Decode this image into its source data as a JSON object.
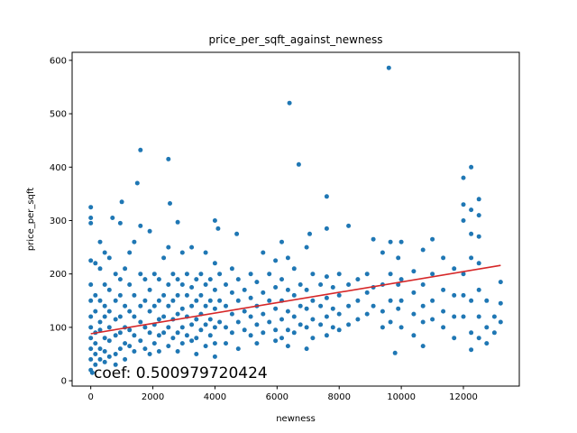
{
  "chart_data": {
    "type": "scatter",
    "title": "price_per_sqft_against_newness",
    "xlabel": "newness",
    "ylabel": "price_per_sqft",
    "xlim": [
      -600,
      13800
    ],
    "ylim": [
      -10,
      615
    ],
    "xticks": [
      0,
      2000,
      4000,
      6000,
      8000,
      10000,
      12000
    ],
    "yticks": [
      0,
      100,
      200,
      300,
      400,
      500,
      600
    ],
    "annotation": "coef: 0.500979720424",
    "point_color": "#1f77b4",
    "line_color": "#d62728",
    "fit_line": {
      "x": [
        0,
        13200
      ],
      "y": [
        88,
        216
      ]
    },
    "series": [
      {
        "values": [
          [
            0,
            325
          ],
          [
            0,
            305
          ],
          [
            0,
            295
          ],
          [
            0,
            225
          ],
          [
            0,
            180
          ],
          [
            0,
            150
          ],
          [
            0,
            120
          ],
          [
            0,
            100
          ],
          [
            0,
            80
          ],
          [
            0,
            60
          ],
          [
            0,
            40
          ],
          [
            0,
            20
          ],
          [
            50,
            15
          ],
          [
            150,
            220
          ],
          [
            150,
            160
          ],
          [
            150,
            130
          ],
          [
            150,
            90
          ],
          [
            150,
            70
          ],
          [
            150,
            50
          ],
          [
            150,
            30
          ],
          [
            300,
            260
          ],
          [
            300,
            210
          ],
          [
            300,
            150
          ],
          [
            300,
            110
          ],
          [
            300,
            95
          ],
          [
            300,
            60
          ],
          [
            300,
            40
          ],
          [
            450,
            240
          ],
          [
            450,
            180
          ],
          [
            450,
            140
          ],
          [
            450,
            120
          ],
          [
            450,
            80
          ],
          [
            450,
            55
          ],
          [
            450,
            35
          ],
          [
            600,
            230
          ],
          [
            600,
            170
          ],
          [
            600,
            130
          ],
          [
            600,
            100
          ],
          [
            600,
            75
          ],
          [
            600,
            45
          ],
          [
            700,
            305
          ],
          [
            800,
            200
          ],
          [
            800,
            150
          ],
          [
            800,
            115
          ],
          [
            800,
            85
          ],
          [
            800,
            50
          ],
          [
            800,
            30
          ],
          [
            950,
            295
          ],
          [
            950,
            190
          ],
          [
            950,
            160
          ],
          [
            950,
            120
          ],
          [
            950,
            90
          ],
          [
            950,
            60
          ],
          [
            1000,
            335
          ],
          [
            1100,
            210
          ],
          [
            1100,
            140
          ],
          [
            1100,
            100
          ],
          [
            1100,
            70
          ],
          [
            1100,
            40
          ],
          [
            1250,
            240
          ],
          [
            1250,
            180
          ],
          [
            1250,
            130
          ],
          [
            1250,
            95
          ],
          [
            1250,
            65
          ],
          [
            1400,
            260
          ],
          [
            1400,
            160
          ],
          [
            1400,
            120
          ],
          [
            1400,
            85
          ],
          [
            1400,
            55
          ],
          [
            1500,
            370
          ],
          [
            1600,
            432
          ],
          [
            1600,
            290
          ],
          [
            1600,
            200
          ],
          [
            1600,
            140
          ],
          [
            1600,
            110
          ],
          [
            1600,
            75
          ],
          [
            1750,
            190
          ],
          [
            1750,
            150
          ],
          [
            1750,
            100
          ],
          [
            1750,
            60
          ],
          [
            1900,
            280
          ],
          [
            1900,
            170
          ],
          [
            1900,
            130
          ],
          [
            1900,
            90
          ],
          [
            1900,
            50
          ],
          [
            2050,
            200
          ],
          [
            2050,
            140
          ],
          [
            2050,
            105
          ],
          [
            2050,
            70
          ],
          [
            2200,
            190
          ],
          [
            2200,
            150
          ],
          [
            2200,
            115
          ],
          [
            2200,
            85
          ],
          [
            2200,
            55
          ],
          [
            2350,
            230
          ],
          [
            2350,
            160
          ],
          [
            2350,
            120
          ],
          [
            2350,
            90
          ],
          [
            2500,
            415
          ],
          [
            2500,
            250
          ],
          [
            2500,
            180
          ],
          [
            2500,
            140
          ],
          [
            2500,
            100
          ],
          [
            2500,
            65
          ],
          [
            2550,
            332
          ],
          [
            2650,
            200
          ],
          [
            2650,
            150
          ],
          [
            2650,
            115
          ],
          [
            2650,
            80
          ],
          [
            2800,
            297
          ],
          [
            2800,
            190
          ],
          [
            2800,
            160
          ],
          [
            2800,
            125
          ],
          [
            2800,
            90
          ],
          [
            2800,
            55
          ],
          [
            2950,
            240
          ],
          [
            2950,
            180
          ],
          [
            2950,
            135
          ],
          [
            2950,
            100
          ],
          [
            2950,
            70
          ],
          [
            3100,
            200
          ],
          [
            3100,
            160
          ],
          [
            3100,
            120
          ],
          [
            3100,
            85
          ],
          [
            3250,
            250
          ],
          [
            3250,
            175
          ],
          [
            3250,
            140
          ],
          [
            3250,
            105
          ],
          [
            3250,
            75
          ],
          [
            3400,
            190
          ],
          [
            3400,
            150
          ],
          [
            3400,
            115
          ],
          [
            3400,
            80
          ],
          [
            3400,
            50
          ],
          [
            3550,
            200
          ],
          [
            3550,
            160
          ],
          [
            3550,
            125
          ],
          [
            3550,
            95
          ],
          [
            3700,
            240
          ],
          [
            3700,
            180
          ],
          [
            3700,
            140
          ],
          [
            3700,
            105
          ],
          [
            3700,
            65
          ],
          [
            3850,
            190
          ],
          [
            3850,
            150
          ],
          [
            3850,
            115
          ],
          [
            3850,
            85
          ],
          [
            4000,
            300
          ],
          [
            4000,
            220
          ],
          [
            4000,
            170
          ],
          [
            4000,
            135
          ],
          [
            4000,
            100
          ],
          [
            4000,
            70
          ],
          [
            4000,
            45
          ],
          [
            4100,
            285
          ],
          [
            4150,
            200
          ],
          [
            4150,
            150
          ],
          [
            4150,
            110
          ],
          [
            4350,
            180
          ],
          [
            4350,
            140
          ],
          [
            4350,
            100
          ],
          [
            4350,
            70
          ],
          [
            4550,
            210
          ],
          [
            4550,
            165
          ],
          [
            4550,
            125
          ],
          [
            4550,
            90
          ],
          [
            4700,
            275
          ],
          [
            4750,
            190
          ],
          [
            4750,
            150
          ],
          [
            4750,
            110
          ],
          [
            4750,
            60
          ],
          [
            4950,
            170
          ],
          [
            4950,
            130
          ],
          [
            4950,
            95
          ],
          [
            5150,
            200
          ],
          [
            5150,
            155
          ],
          [
            5150,
            120
          ],
          [
            5150,
            85
          ],
          [
            5350,
            185
          ],
          [
            5350,
            140
          ],
          [
            5350,
            105
          ],
          [
            5350,
            70
          ],
          [
            5550,
            240
          ],
          [
            5550,
            165
          ],
          [
            5550,
            125
          ],
          [
            5550,
            90
          ],
          [
            5750,
            200
          ],
          [
            5750,
            150
          ],
          [
            5750,
            110
          ],
          [
            5950,
            225
          ],
          [
            5950,
            175
          ],
          [
            5950,
            135
          ],
          [
            5950,
            95
          ],
          [
            5950,
            75
          ],
          [
            6150,
            260
          ],
          [
            6150,
            190
          ],
          [
            6150,
            150
          ],
          [
            6150,
            115
          ],
          [
            6150,
            80
          ],
          [
            6400,
            520
          ],
          [
            6350,
            230
          ],
          [
            6350,
            170
          ],
          [
            6350,
            130
          ],
          [
            6350,
            95
          ],
          [
            6350,
            65
          ],
          [
            6550,
            210
          ],
          [
            6550,
            160
          ],
          [
            6550,
            120
          ],
          [
            6550,
            90
          ],
          [
            6700,
            405
          ],
          [
            6750,
            180
          ],
          [
            6750,
            140
          ],
          [
            6750,
            105
          ],
          [
            6950,
            250
          ],
          [
            6950,
            170
          ],
          [
            6950,
            135
          ],
          [
            6950,
            100
          ],
          [
            6950,
            60
          ],
          [
            7050,
            275
          ],
          [
            7150,
            200
          ],
          [
            7150,
            150
          ],
          [
            7150,
            115
          ],
          [
            7150,
            80
          ],
          [
            7400,
            180
          ],
          [
            7400,
            140
          ],
          [
            7400,
            105
          ],
          [
            7600,
            345
          ],
          [
            7600,
            285
          ],
          [
            7600,
            195
          ],
          [
            7600,
            155
          ],
          [
            7600,
            120
          ],
          [
            7600,
            85
          ],
          [
            7800,
            175
          ],
          [
            7800,
            135
          ],
          [
            7800,
            100
          ],
          [
            8000,
            200
          ],
          [
            8000,
            160
          ],
          [
            8000,
            125
          ],
          [
            8000,
            95
          ],
          [
            8300,
            290
          ],
          [
            8300,
            180
          ],
          [
            8300,
            140
          ],
          [
            8300,
            105
          ],
          [
            8600,
            190
          ],
          [
            8600,
            150
          ],
          [
            8600,
            115
          ],
          [
            8900,
            200
          ],
          [
            8900,
            165
          ],
          [
            8900,
            125
          ],
          [
            9100,
            265
          ],
          [
            9100,
            175
          ],
          [
            9100,
            140
          ],
          [
            9400,
            240
          ],
          [
            9400,
            180
          ],
          [
            9400,
            130
          ],
          [
            9400,
            100
          ],
          [
            9600,
            586
          ],
          [
            9650,
            260
          ],
          [
            9650,
            200
          ],
          [
            9650,
            150
          ],
          [
            9650,
            110
          ],
          [
            9800,
            52
          ],
          [
            9900,
            230
          ],
          [
            9900,
            180
          ],
          [
            9900,
            135
          ],
          [
            10000,
            260
          ],
          [
            10000,
            190
          ],
          [
            10000,
            150
          ],
          [
            10000,
            100
          ],
          [
            10400,
            205
          ],
          [
            10400,
            165
          ],
          [
            10400,
            125
          ],
          [
            10400,
            85
          ],
          [
            10700,
            245
          ],
          [
            10700,
            180
          ],
          [
            10700,
            140
          ],
          [
            10700,
            110
          ],
          [
            10700,
            65
          ],
          [
            11000,
            265
          ],
          [
            11000,
            200
          ],
          [
            11000,
            150
          ],
          [
            11000,
            115
          ],
          [
            11350,
            230
          ],
          [
            11350,
            170
          ],
          [
            11350,
            130
          ],
          [
            11350,
            100
          ],
          [
            11700,
            210
          ],
          [
            11700,
            160
          ],
          [
            11700,
            120
          ],
          [
            11700,
            80
          ],
          [
            12000,
            380
          ],
          [
            12000,
            330
          ],
          [
            12000,
            300
          ],
          [
            12000,
            200
          ],
          [
            12000,
            160
          ],
          [
            12000,
            120
          ],
          [
            12250,
            400
          ],
          [
            12250,
            320
          ],
          [
            12250,
            275
          ],
          [
            12250,
            230
          ],
          [
            12250,
            150
          ],
          [
            12250,
            90
          ],
          [
            12250,
            58
          ],
          [
            12500,
            340
          ],
          [
            12500,
            310
          ],
          [
            12500,
            270
          ],
          [
            12500,
            220
          ],
          [
            12500,
            170
          ],
          [
            12500,
            120
          ],
          [
            12500,
            80
          ],
          [
            12750,
            150
          ],
          [
            12750,
            100
          ],
          [
            12750,
            70
          ],
          [
            13000,
            120
          ],
          [
            13000,
            90
          ],
          [
            13200,
            185
          ],
          [
            13200,
            145
          ],
          [
            13200,
            110
          ]
        ]
      }
    ]
  }
}
